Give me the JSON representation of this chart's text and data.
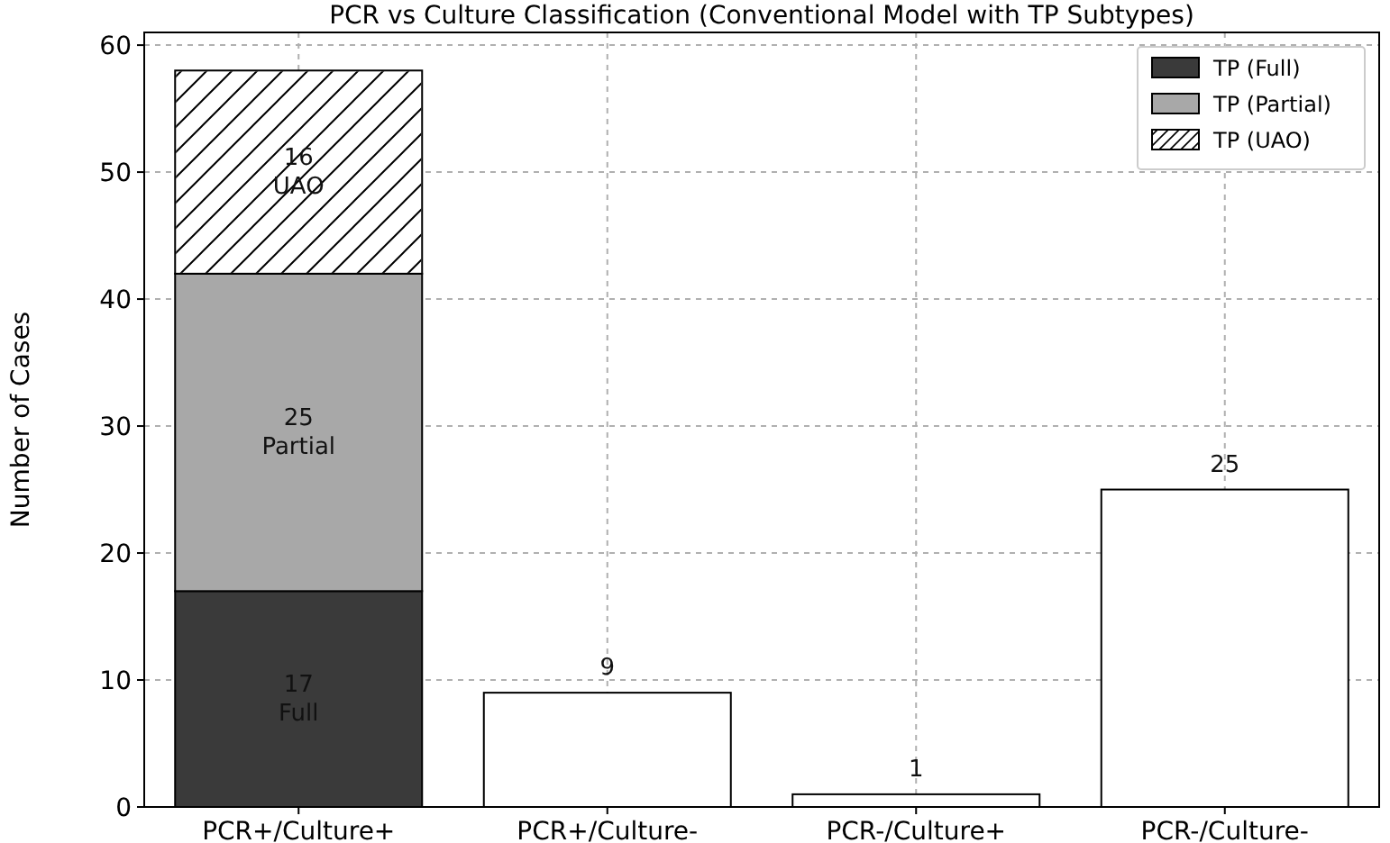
{
  "chart_data": {
    "type": "bar",
    "title": "PCR vs Culture Classification (Conventional Model with TP Subtypes)",
    "ylabel": "Number of Cases",
    "categories": [
      "PCR+/Culture+",
      "PCR+/Culture-",
      "PCR-/Culture+",
      "PCR-/Culture-"
    ],
    "stacked": true,
    "ylim": [
      0,
      61
    ],
    "yticks": [
      0,
      10,
      20,
      30,
      40,
      50,
      60
    ],
    "grid": true,
    "legend": "top right",
    "series": [
      {
        "name": "TP (Full)",
        "color": "#3a3a3a",
        "values": [
          17,
          null,
          null,
          null
        ],
        "value_labels": [
          "17\nFull",
          null,
          null,
          null
        ]
      },
      {
        "name": "TP (Partial)",
        "color": "#a8a8a8",
        "values": [
          25,
          null,
          null,
          null
        ],
        "value_labels": [
          "25\nPartial",
          null,
          null,
          null
        ]
      },
      {
        "name": "TP (UAO)",
        "color": "#ffffff",
        "values": [
          16,
          null,
          null,
          null
        ],
        "value_labels": [
          "16\nUAO",
          null,
          null,
          null
        ]
      },
      {
        "color": "#ffffff",
        "values": [
          null,
          9,
          1,
          25
        ],
        "value_labels": [
          null,
          "9",
          "1",
          "25"
        ]
      }
    ]
  }
}
